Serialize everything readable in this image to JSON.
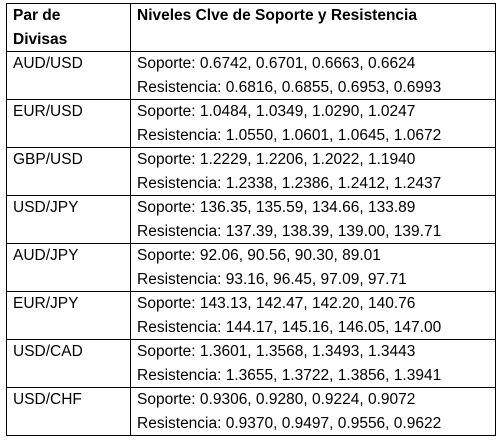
{
  "table": {
    "headers": {
      "pair_line1": "Par de",
      "pair_line2": "Divisas",
      "levels": "Niveles Clve de Soporte y Resistencia"
    },
    "rows": [
      {
        "pair": "AUD/USD",
        "support": "Soporte: 0.6742, 0.6701, 0.6663, 0.6624",
        "resistance": "Resistencia: 0.6816, 0.6855, 0.6953, 0.6993"
      },
      {
        "pair": "EUR/USD",
        "support": "Soporte: 1.0484, 1.0349, 1.0290, 1.0247",
        "resistance": "Resistencia: 1.0550, 1.0601, 1.0645, 1.0672"
      },
      {
        "pair": "GBP/USD",
        "support": "Soporte: 1.2229, 1.2206, 1.2022, 1.1940",
        "resistance": "Resistencia: 1.2338, 1.2386, 1.2412, 1.2437"
      },
      {
        "pair": "USD/JPY",
        "support": "Soporte: 136.35, 135.59, 134.66, 133.89",
        "resistance": "Resistencia: 137.39, 138.39, 139.00, 139.71"
      },
      {
        "pair": "AUD/JPY",
        "support": "Soporte: 92.06, 90.56, 90.30, 89.01",
        "resistance": "Resistencia: 93.16, 96.45, 97.09, 97.71"
      },
      {
        "pair": "EUR/JPY",
        "support": "Soporte: 143.13, 142.47, 142.20, 140.76",
        "resistance": "Resistencia: 144.17, 145.16, 146.05, 147.00"
      },
      {
        "pair": "USD/CAD",
        "support": "Soporte: 1.3601, 1.3568, 1.3493, 1.3443",
        "resistance": "Resistencia: 1.3655, 1.3722, 1.3856, 1.3941"
      },
      {
        "pair": "USD/CHF",
        "support": "Soporte: 0.9306, 0.9280, 0.9224, 0.9072",
        "resistance": "Resistencia: 0.9370, 0.9497, 0.9556, 0.9622"
      }
    ]
  }
}
